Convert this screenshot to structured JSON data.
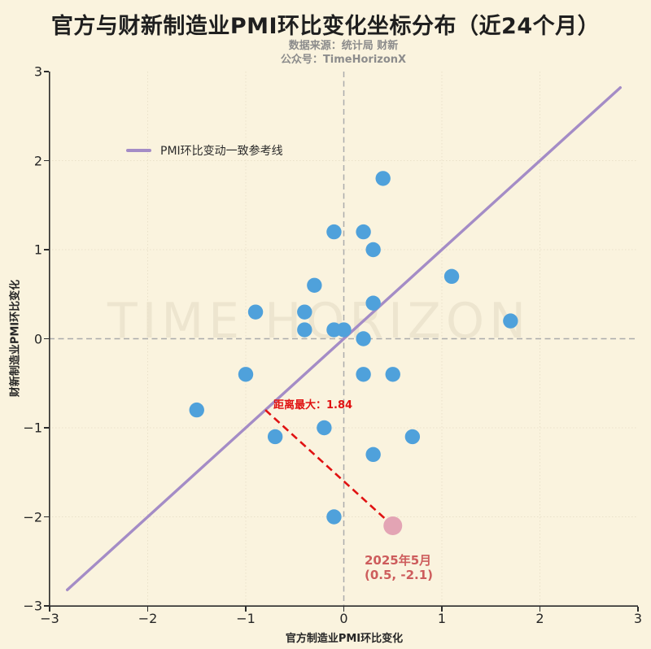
{
  "title": "官方与财新制造业PMI环比变化坐标分布（近24个月）",
  "subtitle": {
    "line1": "数据来源：统计局 财新",
    "line2": "公众号：TimeHorizonX"
  },
  "watermark": "TIME HORIZON",
  "legend": {
    "label": "PMI环比变动一致参考线"
  },
  "colors": {
    "background": "#FAF3DE",
    "text": "#262626",
    "title": "#1F1F1F",
    "subtitle": "#8C8C8C",
    "grid": "#E9E1C9",
    "zero_line": "#ABABAB",
    "spine": "#2B2B2B",
    "reference_line": "#A48CC6",
    "scatter": "#4FA1DB",
    "highlight": "#E3A4B4",
    "distance": "#E01212",
    "annotation": "#CD5C5C",
    "watermark": "#EDE5CF"
  },
  "chart_data": {
    "type": "scatter",
    "title": "官方与财新制造业PMI环比变化坐标分布（近24个月）",
    "xlabel": "官方制造业PMI环比变化",
    "ylabel": "财新制造业PMI环比变化",
    "xlim": [
      -3,
      3
    ],
    "ylim": [
      -3,
      3
    ],
    "xticks": [
      -3,
      -2,
      -1,
      0,
      1,
      2,
      3
    ],
    "yticks": [
      -3,
      -2,
      -1,
      0,
      1,
      2,
      3
    ],
    "xtick_labels": [
      "−3",
      "−2",
      "−1",
      "0",
      "1",
      "2",
      "3"
    ],
    "ytick_labels": [
      "−3",
      "−2",
      "−1",
      "0",
      "1",
      "2",
      "3"
    ],
    "grid": true,
    "legend_position": "upper-left-inside",
    "series": [
      {
        "name": "monthly-pmi-points",
        "color": "#4FA1DB",
        "radius": 9.2,
        "points": [
          [
            0.4,
            1.8
          ],
          [
            -0.1,
            1.2
          ],
          [
            0.2,
            1.2
          ],
          [
            0.3,
            1.0
          ],
          [
            -0.3,
            0.6
          ],
          [
            1.1,
            0.7
          ],
          [
            -0.9,
            0.3
          ],
          [
            -0.4,
            0.3
          ],
          [
            0.3,
            0.4
          ],
          [
            1.7,
            0.2
          ],
          [
            -0.4,
            0.1
          ],
          [
            -0.1,
            0.1
          ],
          [
            0.0,
            0.1
          ],
          [
            0.2,
            0.0
          ],
          [
            -1.0,
            -0.4
          ],
          [
            0.2,
            -0.4
          ],
          [
            0.5,
            -0.4
          ],
          [
            -1.5,
            -0.8
          ],
          [
            -0.7,
            -1.1
          ],
          [
            -0.2,
            -1.0
          ],
          [
            0.7,
            -1.1
          ],
          [
            0.3,
            -1.3
          ],
          [
            -0.1,
            -2.0
          ]
        ]
      },
      {
        "name": "highlight-2025-05",
        "color": "#E3A4B4",
        "radius": 11.5,
        "points": [
          [
            0.5,
            -2.1
          ]
        ]
      }
    ],
    "reference_line": {
      "label": "PMI环比变动一致参考线",
      "from": [
        -2.82,
        -2.82
      ],
      "to": [
        2.82,
        2.82
      ],
      "color": "#A48CC6"
    },
    "distance_line": {
      "label": "距离最大：1.84",
      "value": 1.84,
      "from": [
        -0.8,
        -0.8
      ],
      "to": [
        0.5,
        -2.1
      ],
      "color": "#E01212"
    },
    "annotation": {
      "lines": [
        "2025年5月",
        "(0.5, -2.1)"
      ],
      "anchor": [
        0.5,
        -2.1
      ],
      "color": "#CD5C5C"
    }
  }
}
